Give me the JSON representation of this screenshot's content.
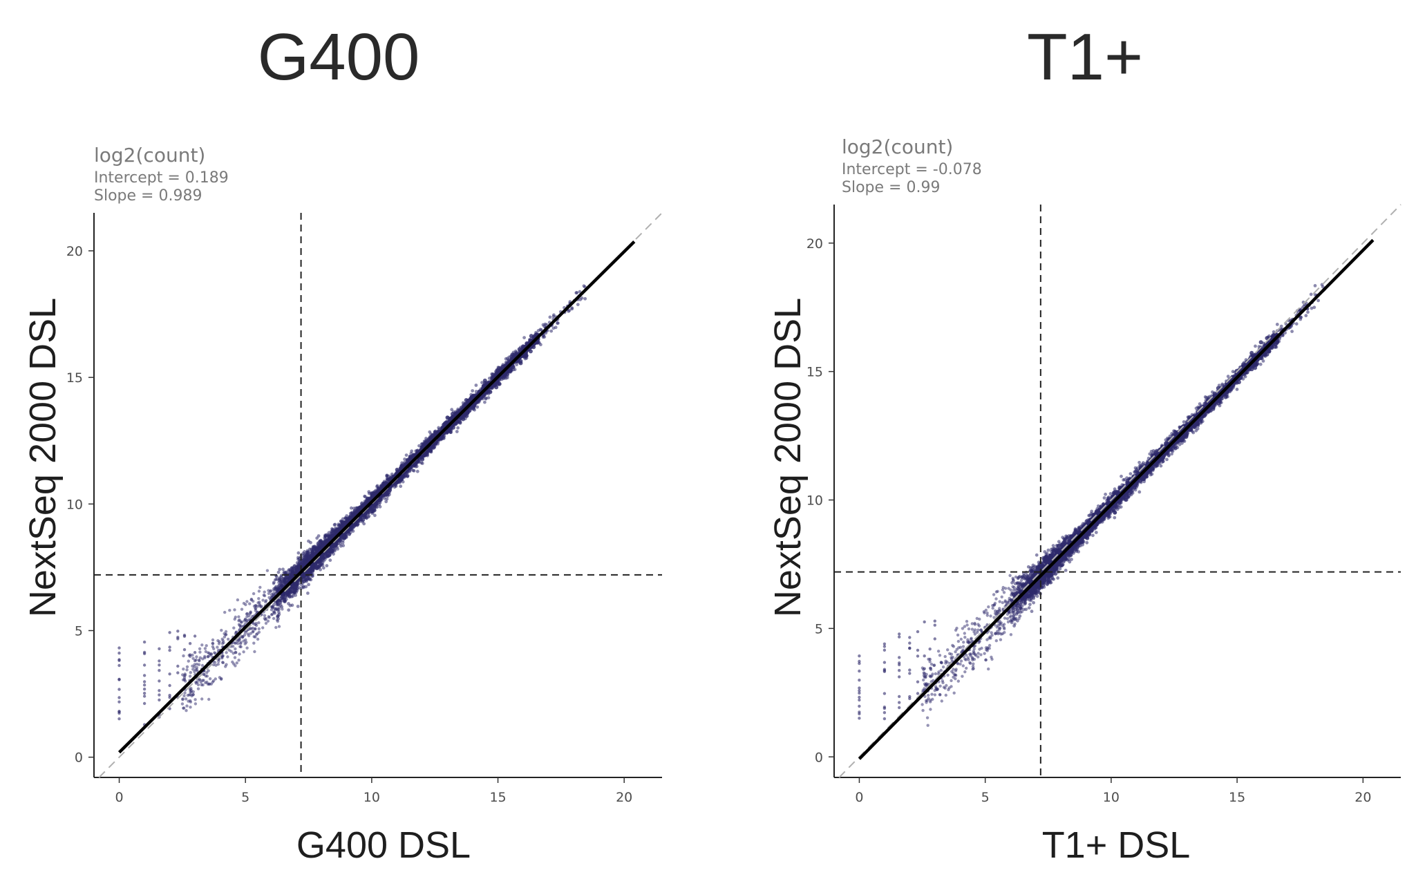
{
  "chart_data": [
    {
      "type": "scatter",
      "title": "G400",
      "subtitle": "log2(count)",
      "annotations": [
        "Intercept = 0.189",
        "Slope = 0.989"
      ],
      "xlabel": "G400 DSL",
      "ylabel": "NextSeq 2000 DSL",
      "xlim": [
        -1,
        21.5
      ],
      "ylim": [
        -0.8,
        21.5
      ],
      "xticks": [
        0,
        5,
        10,
        15,
        20
      ],
      "yticks": [
        0,
        5,
        10,
        15,
        20
      ],
      "grid": false,
      "regression": {
        "intercept": 0.189,
        "slope": 0.989,
        "x_range": [
          0,
          20.4
        ]
      },
      "identity_line": true,
      "threshold_x": 7.2,
      "threshold_y": 7.2,
      "point_color": "#2e2a6b",
      "line_color": "#000000",
      "identity_color": "#b0b0b0"
    },
    {
      "type": "scatter",
      "title": "T1+",
      "subtitle": "log2(count)",
      "annotations": [
        "Intercept = -0.078",
        "Slope = 0.99"
      ],
      "xlabel": "T1+ DSL",
      "ylabel": "NextSeq 2000 DSL",
      "xlim": [
        -1,
        21.5
      ],
      "ylim": [
        -0.8,
        21.5
      ],
      "xticks": [
        0,
        5,
        10,
        15,
        20
      ],
      "yticks": [
        0,
        5,
        10,
        15,
        20
      ],
      "grid": false,
      "regression": {
        "intercept": -0.078,
        "slope": 0.99,
        "x_range": [
          0,
          20.4
        ]
      },
      "identity_line": true,
      "threshold_x": 7.2,
      "threshold_y": 7.2,
      "point_color": "#2e2a6b",
      "line_color": "#000000",
      "identity_color": "#b0b0b0"
    }
  ]
}
